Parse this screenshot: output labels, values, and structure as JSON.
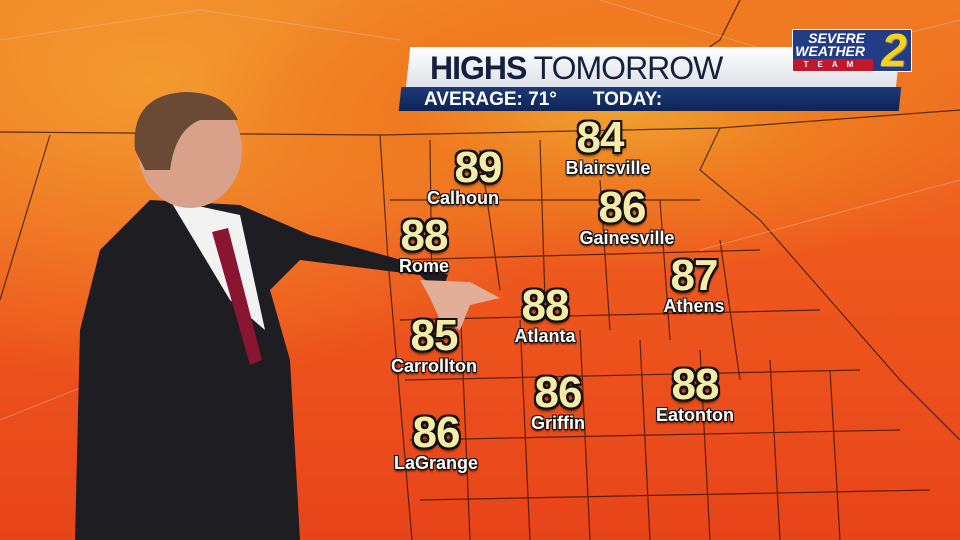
{
  "banner": {
    "title_bold": "HIGHS",
    "title_rest": "TOMORROW",
    "average": "AVERAGE: 71°",
    "today": "TODAY:"
  },
  "logo": {
    "line1": "SEVERE",
    "line2": "WEATHER",
    "team": "TEAM",
    "number": "2",
    "colors": {
      "blue": "#233c86",
      "red": "#c3172c",
      "yellow": "#f7d21c"
    }
  },
  "cities": [
    {
      "name": "Calhoun",
      "temp": "89"
    },
    {
      "name": "Blairsville",
      "temp": "84"
    },
    {
      "name": "Rome",
      "temp": "88"
    },
    {
      "name": "Gainesville",
      "temp": "86"
    },
    {
      "name": "Athens",
      "temp": "87"
    },
    {
      "name": "Atlanta",
      "temp": "88"
    },
    {
      "name": "Carrollton",
      "temp": "85"
    },
    {
      "name": "Griffin",
      "temp": "86"
    },
    {
      "name": "Eatonton",
      "temp": "88"
    },
    {
      "name": "LaGrange",
      "temp": "86"
    }
  ]
}
